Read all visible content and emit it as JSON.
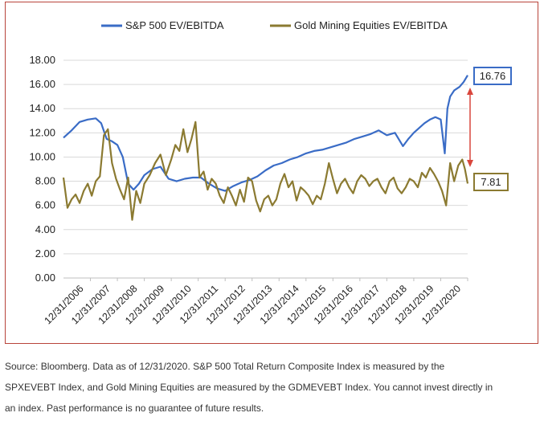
{
  "chart_data": {
    "type": "line",
    "ylim": [
      0,
      18
    ],
    "yticks": [
      "0.00",
      "2.00",
      "4.00",
      "6.00",
      "8.00",
      "10.00",
      "12.00",
      "14.00",
      "16.00",
      "18.00"
    ],
    "xtick_labels": [
      "12/31/2006",
      "12/31/2007",
      "12/31/2008",
      "12/31/2009",
      "12/31/2010",
      "12/31/2011",
      "12/31/2012",
      "12/31/2013",
      "12/31/2014",
      "12/31/2015",
      "12/31/2016",
      "12/31/2017",
      "12/31/2018",
      "12/31/2019",
      "12/31/2020"
    ],
    "grid": true,
    "legend_position": "top",
    "series": [
      {
        "name": "S&P 500 EV/EBITDA",
        "color": "#3a6cc6",
        "x": [
          2006.0,
          2006.3,
          2006.6,
          2006.9,
          2007.2,
          2007.4,
          2007.6,
          2007.8,
          2008.0,
          2008.2,
          2008.4,
          2008.6,
          2008.8,
          2009.0,
          2009.3,
          2009.6,
          2009.9,
          2010.2,
          2010.5,
          2010.8,
          2011.1,
          2011.4,
          2011.7,
          2012.0,
          2012.3,
          2012.6,
          2012.9,
          2013.2,
          2013.5,
          2013.8,
          2014.1,
          2014.4,
          2014.7,
          2015.0,
          2015.3,
          2015.6,
          2015.9,
          2016.2,
          2016.5,
          2016.8,
          2017.1,
          2017.4,
          2017.7,
          2018.0,
          2018.3,
          2018.6,
          2018.8,
          2019.0,
          2019.2,
          2019.4,
          2019.6,
          2019.8,
          2020.0,
          2020.15,
          2020.25,
          2020.35,
          2020.5,
          2020.7,
          2020.85,
          2021.0
        ],
        "values": [
          11.6,
          12.2,
          12.9,
          13.1,
          13.2,
          12.8,
          11.5,
          11.3,
          11.0,
          10.0,
          7.8,
          7.3,
          7.8,
          8.5,
          9.0,
          9.2,
          8.2,
          8.0,
          8.2,
          8.3,
          8.3,
          7.8,
          7.4,
          7.2,
          7.6,
          7.9,
          8.1,
          8.4,
          8.9,
          9.3,
          9.5,
          9.8,
          10.0,
          10.3,
          10.5,
          10.6,
          10.8,
          11.0,
          11.2,
          11.5,
          11.7,
          11.9,
          12.2,
          11.8,
          12.0,
          10.9,
          11.5,
          12.0,
          12.4,
          12.8,
          13.1,
          13.3,
          13.1,
          10.3,
          14.0,
          15.0,
          15.5,
          15.8,
          16.2,
          16.76
        ]
      },
      {
        "name": "Gold Mining Equities EV/EBITDA",
        "color": "#8b7a31",
        "x": [
          2006.0,
          2006.15,
          2006.3,
          2006.45,
          2006.6,
          2006.75,
          2006.9,
          2007.05,
          2007.2,
          2007.35,
          2007.5,
          2007.65,
          2007.8,
          2007.95,
          2008.1,
          2008.25,
          2008.4,
          2008.55,
          2008.7,
          2008.85,
          2009.0,
          2009.2,
          2009.4,
          2009.6,
          2009.8,
          2010.0,
          2010.15,
          2010.3,
          2010.45,
          2010.6,
          2010.75,
          2010.9,
          2011.05,
          2011.2,
          2011.35,
          2011.5,
          2011.65,
          2011.8,
          2011.95,
          2012.1,
          2012.25,
          2012.4,
          2012.55,
          2012.7,
          2012.85,
          2013.0,
          2013.15,
          2013.3,
          2013.45,
          2013.6,
          2013.75,
          2013.9,
          2014.05,
          2014.2,
          2014.35,
          2014.5,
          2014.65,
          2014.8,
          2014.95,
          2015.1,
          2015.25,
          2015.4,
          2015.55,
          2015.7,
          2015.85,
          2016.0,
          2016.15,
          2016.3,
          2016.45,
          2016.6,
          2016.75,
          2016.9,
          2017.05,
          2017.2,
          2017.35,
          2017.5,
          2017.65,
          2017.8,
          2017.95,
          2018.1,
          2018.25,
          2018.4,
          2018.55,
          2018.7,
          2018.85,
          2019.0,
          2019.15,
          2019.3,
          2019.45,
          2019.6,
          2019.75,
          2019.9,
          2020.05,
          2020.2,
          2020.35,
          2020.5,
          2020.65,
          2020.8,
          2020.9,
          2021.0
        ],
        "values": [
          8.3,
          5.8,
          6.5,
          6.9,
          6.2,
          7.2,
          7.8,
          6.8,
          8.0,
          8.4,
          11.8,
          12.3,
          9.5,
          8.2,
          7.3,
          6.5,
          8.3,
          4.8,
          7.2,
          6.2,
          7.8,
          8.5,
          9.5,
          10.2,
          8.5,
          9.8,
          11.0,
          10.5,
          12.3,
          10.4,
          11.5,
          12.9,
          8.3,
          8.8,
          7.3,
          8.2,
          7.8,
          6.8,
          6.2,
          7.5,
          6.8,
          6.0,
          7.3,
          6.3,
          8.3,
          8.0,
          6.4,
          5.5,
          6.5,
          6.8,
          6.0,
          6.5,
          7.8,
          8.6,
          7.5,
          8.0,
          6.4,
          7.5,
          7.2,
          6.8,
          6.1,
          6.8,
          6.5,
          7.8,
          9.5,
          8.2,
          7.0,
          7.8,
          8.2,
          7.5,
          7.0,
          8.0,
          8.5,
          8.2,
          7.6,
          8.0,
          8.2,
          7.5,
          7.0,
          8.0,
          8.3,
          7.4,
          7.0,
          7.5,
          8.2,
          8.0,
          7.5,
          8.7,
          8.3,
          9.1,
          8.6,
          8.0,
          7.2,
          6.0,
          9.5,
          8.0,
          9.3,
          9.8,
          9.0,
          7.81
        ]
      }
    ],
    "end_labels": [
      "16.76",
      "7.81"
    ]
  },
  "footnote": {
    "line1": "Source: Bloomberg. Data as of 12/31/2020. S&P 500 Total Return Composite Index is measured by the",
    "line2": "SPXEVEBT Index, and Gold Mining Equities are measured by the GDMEVEBT Index. You cannot invest directly in",
    "line3": "an index. Past performance is no guarantee of future results."
  }
}
